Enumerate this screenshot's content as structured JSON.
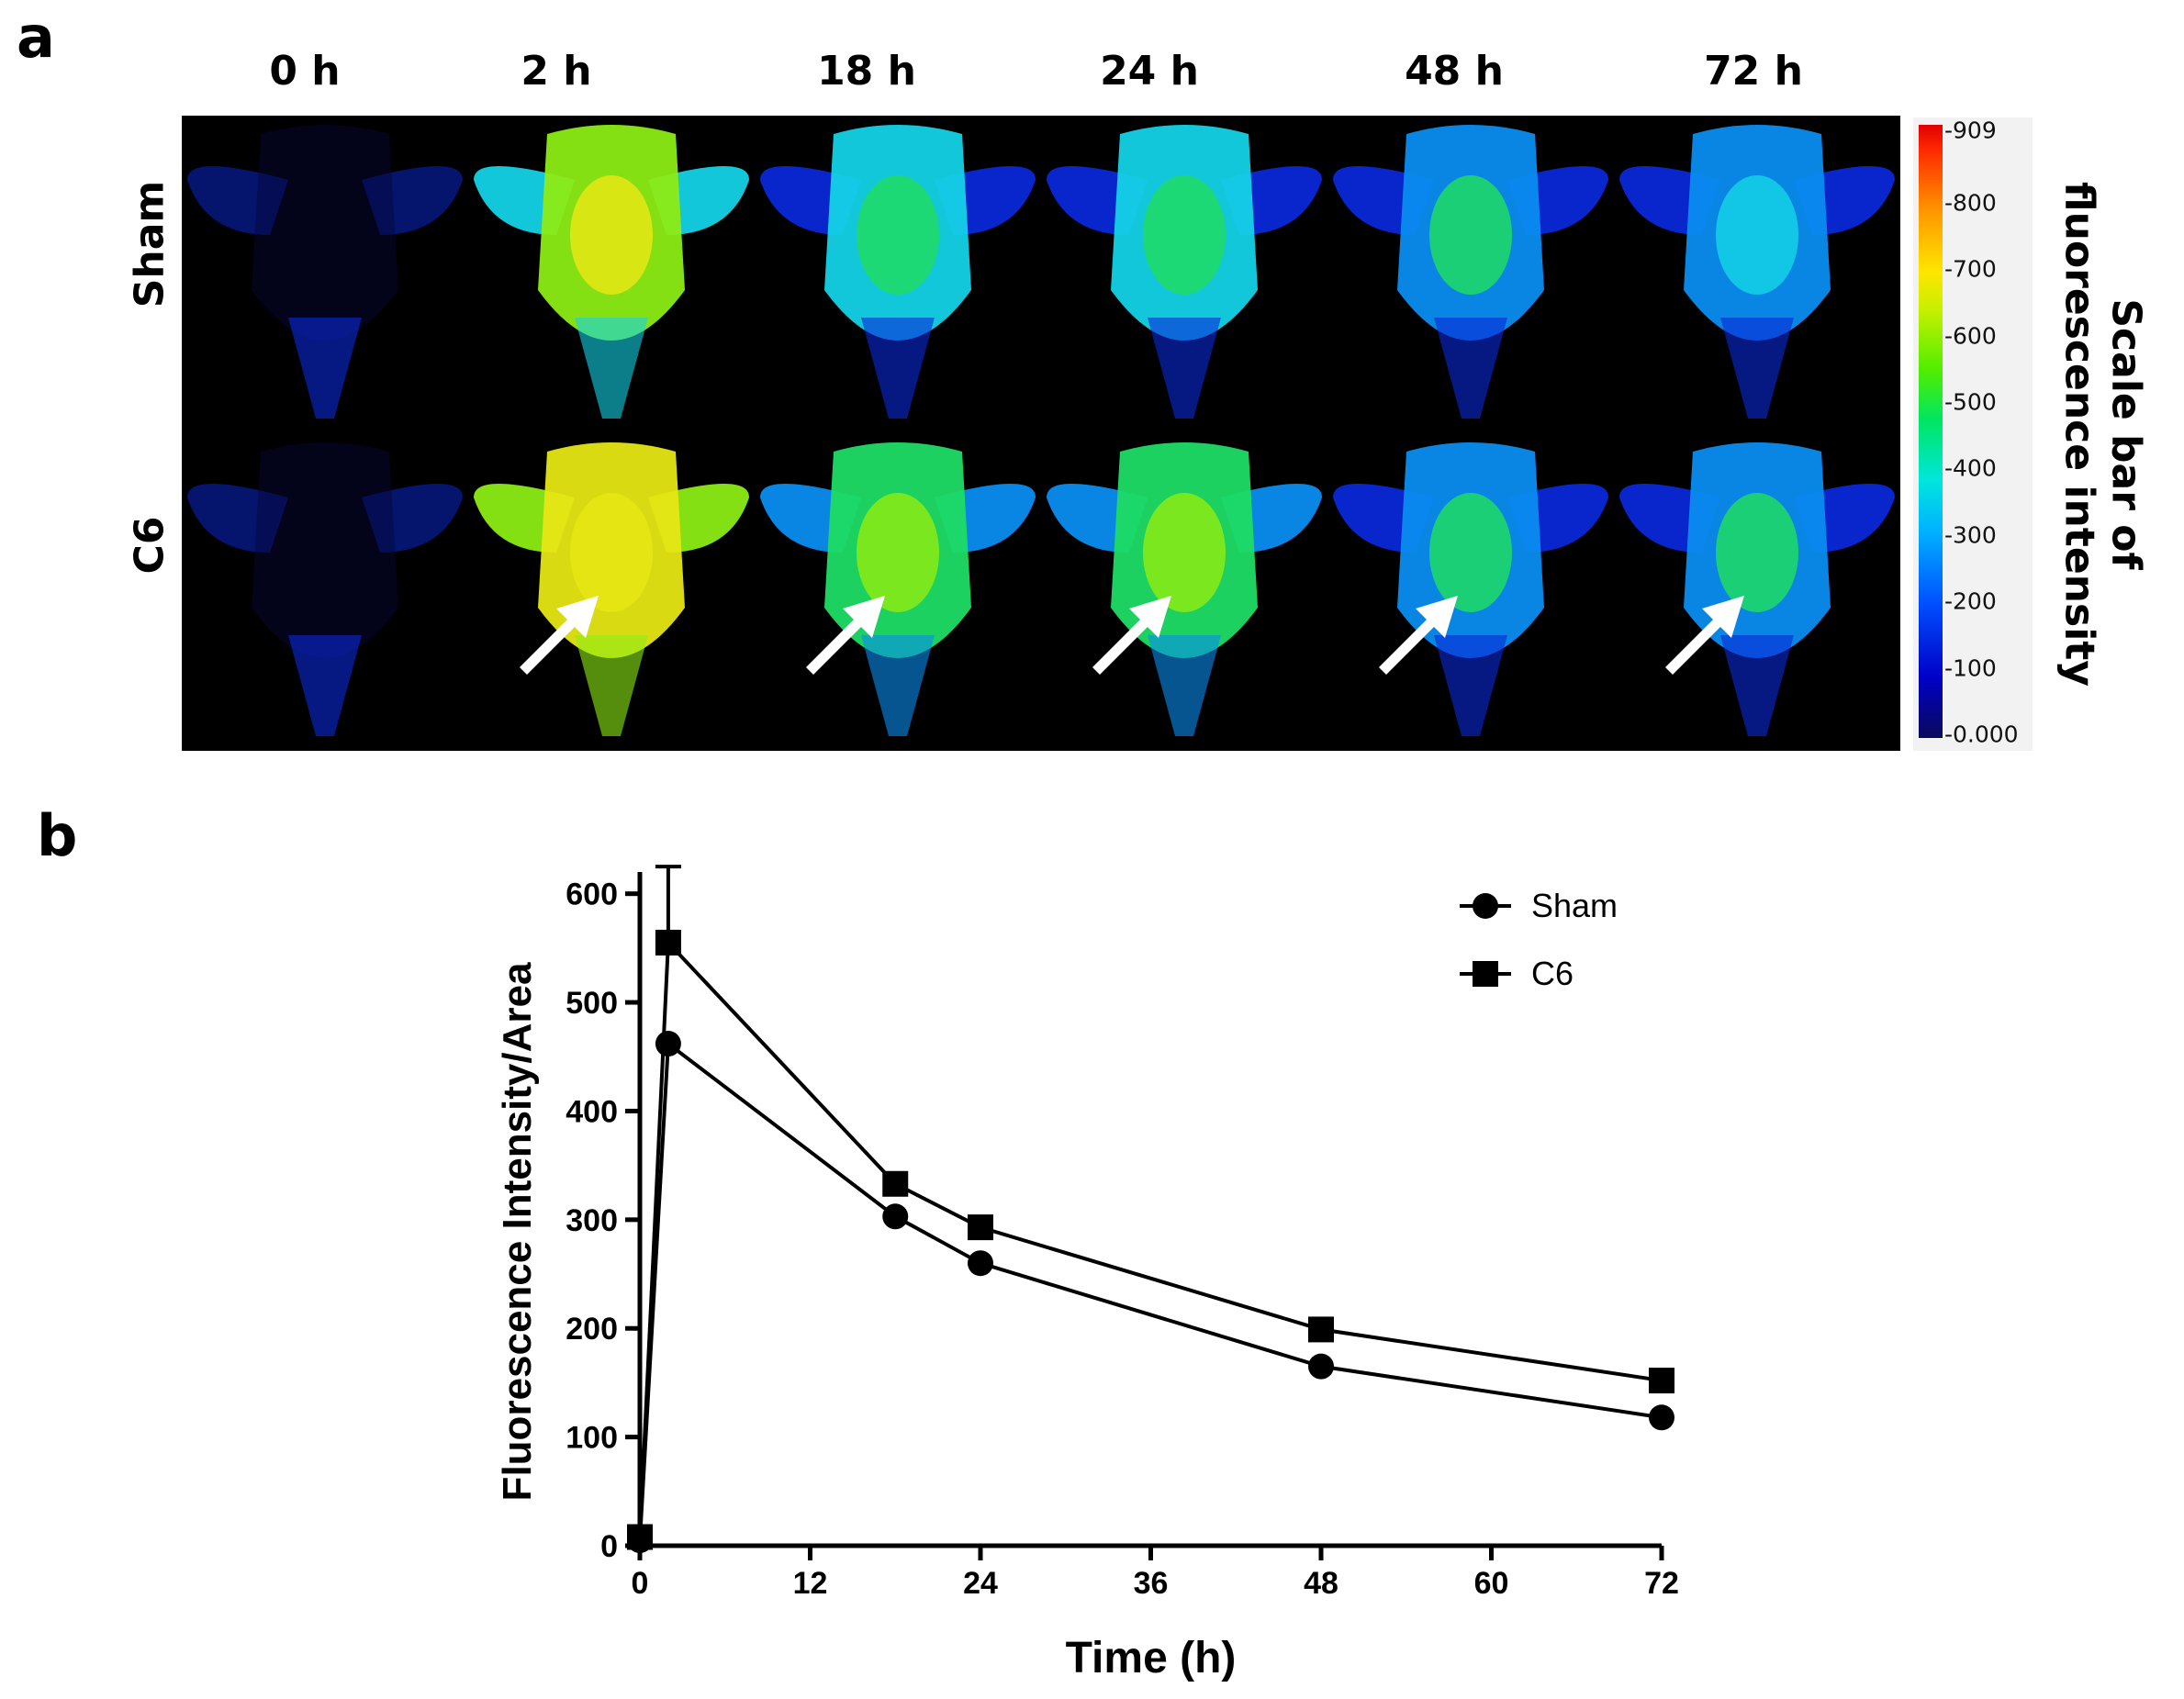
{
  "panels": {
    "a": {
      "letter": "a"
    },
    "b": {
      "letter": "b"
    }
  },
  "imaging": {
    "time_points": [
      "0 h",
      "2 h",
      "18 h",
      "24 h",
      "48 h",
      "72 h"
    ],
    "rows": [
      "Sham",
      "C6"
    ],
    "colorbar": {
      "title_line1": "Scale bar of",
      "title_line2": "fluorescence intensity",
      "ticks": [
        "909",
        "800",
        "700",
        "600",
        "500",
        "400",
        "300",
        "200",
        "100",
        "0.000"
      ]
    },
    "arrow_color": "#ffffff"
  },
  "chart_data": {
    "type": "line",
    "xlabel": "Time (h)",
    "ylabel": "Fluorescence Intensity/Area",
    "xlim": [
      0,
      72
    ],
    "ylim": [
      0,
      620
    ],
    "xticks": [
      0,
      12,
      24,
      36,
      48,
      60,
      72
    ],
    "yticks": [
      0,
      100,
      200,
      300,
      400,
      500,
      600
    ],
    "legend_position": "top-right",
    "x": [
      0,
      2,
      18,
      24,
      48,
      72
    ],
    "series": [
      {
        "name": "Sham",
        "marker": "circle",
        "values": [
          5,
          462,
          303,
          260,
          165,
          118
        ]
      },
      {
        "name": "C6",
        "marker": "square",
        "values": [
          8,
          555,
          333,
          293,
          199,
          152
        ],
        "error_upper": [
          0,
          625,
          0,
          0,
          0,
          0
        ]
      }
    ]
  }
}
